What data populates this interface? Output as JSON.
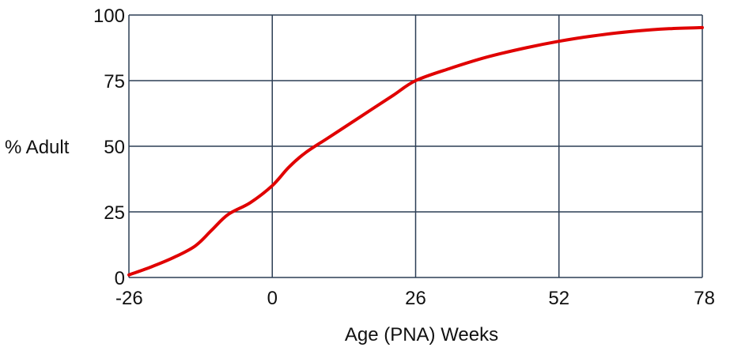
{
  "chart_data": {
    "type": "line",
    "title": "",
    "xlabel": "Age (PNA) Weeks",
    "ylabel": "% Adult",
    "xlim": [
      -26,
      78
    ],
    "ylim": [
      0,
      100
    ],
    "x_ticks": [
      -26,
      0,
      26,
      52,
      78
    ],
    "y_ticks": [
      0,
      25,
      50,
      75,
      100
    ],
    "grid": true,
    "series": [
      {
        "color": "#e00000",
        "points": [
          [
            -26,
            1
          ],
          [
            -22,
            4
          ],
          [
            -18,
            7.5
          ],
          [
            -14,
            12
          ],
          [
            -11,
            18
          ],
          [
            -8,
            24
          ],
          [
            -4,
            28.5
          ],
          [
            0,
            35
          ],
          [
            3,
            42
          ],
          [
            6,
            47.5
          ],
          [
            10,
            53
          ],
          [
            14,
            58.5
          ],
          [
            18,
            64
          ],
          [
            22,
            69.5
          ],
          [
            26,
            75
          ],
          [
            32,
            79.5
          ],
          [
            39,
            84
          ],
          [
            46,
            87.5
          ],
          [
            52,
            90
          ],
          [
            58,
            92
          ],
          [
            65,
            93.7
          ],
          [
            72,
            94.8
          ],
          [
            78,
            95.2
          ]
        ]
      }
    ]
  },
  "colors": {
    "grid": "#2c3e55",
    "series": "#e00000"
  }
}
